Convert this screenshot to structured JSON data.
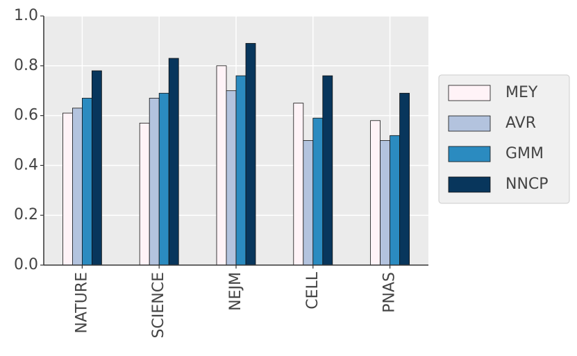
{
  "chart_data": {
    "type": "bar",
    "categories": [
      "NATURE",
      "SCIENCE",
      "NEJM",
      "CELL",
      "PNAS"
    ],
    "series": [
      {
        "name": "MEY",
        "color": "#fff3f7",
        "values": [
          0.61,
          0.57,
          0.8,
          0.65,
          0.58
        ]
      },
      {
        "name": "AVR",
        "color": "#b3c3de",
        "values": [
          0.63,
          0.67,
          0.7,
          0.5,
          0.5
        ]
      },
      {
        "name": "GMM",
        "color": "#2b8bc0",
        "values": [
          0.67,
          0.69,
          0.76,
          0.59,
          0.52
        ]
      },
      {
        "name": "NNCP",
        "color": "#08365c",
        "values": [
          0.78,
          0.83,
          0.89,
          0.76,
          0.69
        ]
      }
    ],
    "ylim": [
      0,
      1.0
    ],
    "yticks": [
      {
        "value": 0,
        "label": "0.0"
      },
      {
        "value": 0.2,
        "label": "0.2"
      },
      {
        "value": 0.4,
        "label": "0.4"
      },
      {
        "value": 0.6,
        "label": "0.6"
      },
      {
        "value": 0.8,
        "label": "0.8"
      },
      {
        "value": 1.0,
        "label": "1.0"
      }
    ],
    "grid": true,
    "legend": "right"
  }
}
